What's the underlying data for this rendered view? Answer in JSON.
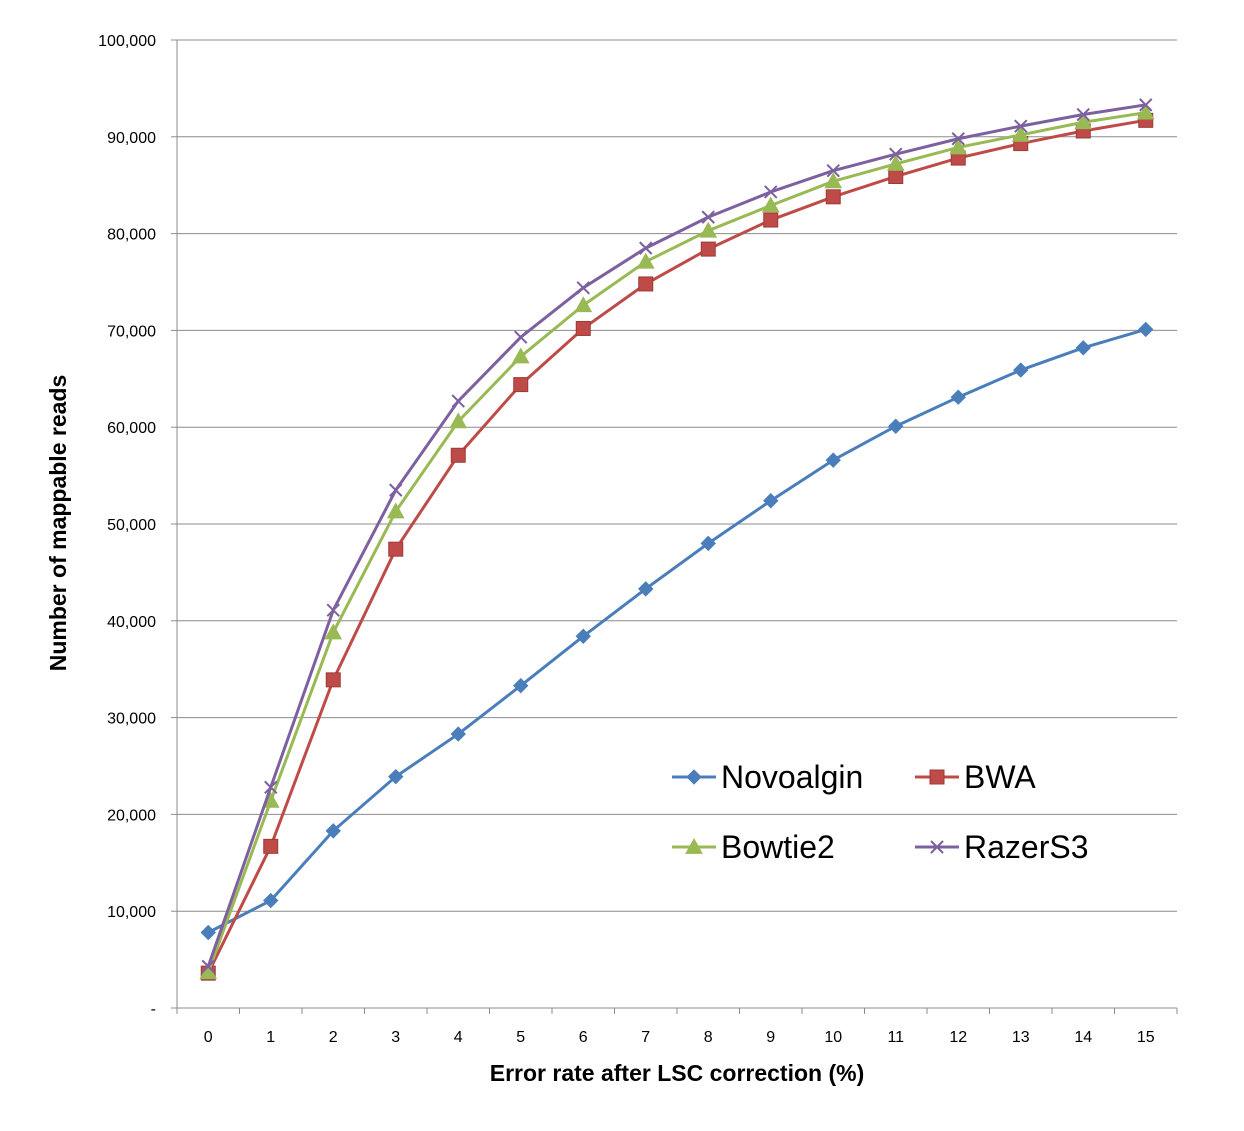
{
  "chart_data": {
    "type": "line",
    "title": "",
    "xlabel": "Error rate after LSC correction (%)",
    "ylabel": "Number of mappable reads",
    "x": [
      0,
      1,
      2,
      3,
      4,
      5,
      6,
      7,
      8,
      9,
      10,
      11,
      12,
      13,
      14,
      15
    ],
    "ylim": [
      0,
      100000
    ],
    "y_ticks": [
      0,
      10000,
      20000,
      30000,
      40000,
      50000,
      60000,
      70000,
      80000,
      90000,
      100000
    ],
    "y_tick_labels": [
      "-",
      "10,000",
      "20,000",
      "30,000",
      "40,000",
      "50,000",
      "60,000",
      "70,000",
      "80,000",
      "90,000",
      "100,000"
    ],
    "grid": "horizontal",
    "legend_position": "bottom-right",
    "series": [
      {
        "name": "Novoalgin",
        "color": "#4A7EBB",
        "marker": "diamond",
        "values": [
          7800,
          11100,
          18300,
          23900,
          28300,
          33300,
          38400,
          43300,
          48000,
          52400,
          56600,
          60100,
          63100,
          65900,
          68200,
          70100
        ]
      },
      {
        "name": "BWA",
        "color": "#BE4B48",
        "marker": "square",
        "values": [
          3600,
          16700,
          33900,
          47400,
          57100,
          64400,
          70200,
          74800,
          78400,
          81400,
          83800,
          85900,
          87800,
          89300,
          90600,
          91700
        ]
      },
      {
        "name": "Bowtie2",
        "color": "#98B954",
        "marker": "triangle",
        "values": [
          3700,
          21400,
          38800,
          51300,
          60600,
          67300,
          72600,
          77100,
          80300,
          82900,
          85400,
          87200,
          88900,
          90200,
          91500,
          92500
        ]
      },
      {
        "name": "RazerS3",
        "color": "#7D60A0",
        "marker": "x",
        "values": [
          4300,
          22800,
          41100,
          53500,
          62700,
          69300,
          74400,
          78500,
          81700,
          84300,
          86500,
          88200,
          89800,
          91100,
          92300,
          93300
        ]
      }
    ]
  }
}
